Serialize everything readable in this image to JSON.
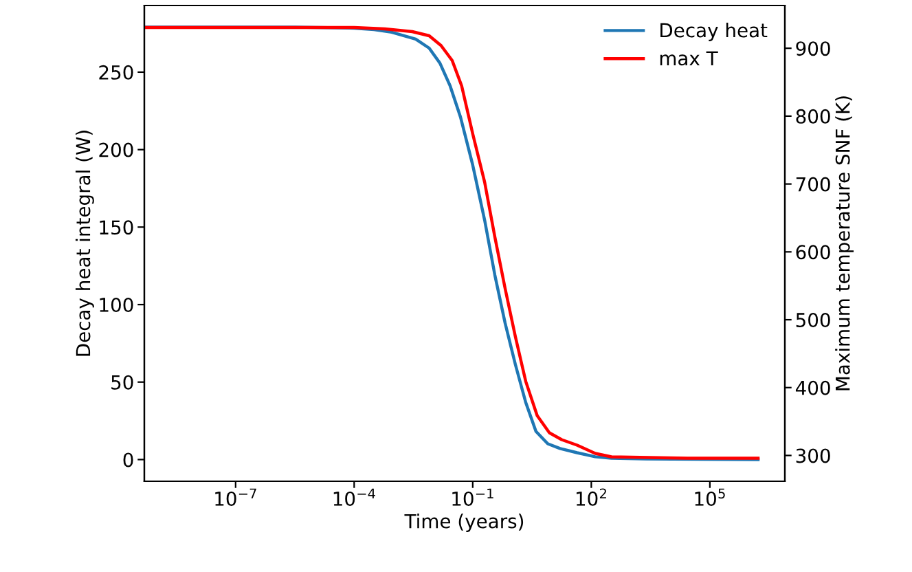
{
  "chart_data": {
    "type": "line",
    "xlabel": "Time (years)",
    "ylabel": "Decay heat integral (W)",
    "y2label": "Maximum temperature SNF (K)",
    "log": "x",
    "legend": "top right",
    "grid": false,
    "marker": "none",
    "line_style": "solid",
    "xlim": [
      4.9e-10,
      7900000.0
    ],
    "xticks": [
      {
        "value": 1e-07,
        "label": "10$^{−7}$"
      },
      {
        "value": 0.0001,
        "label": "10$^{−4}$"
      },
      {
        "value": 0.1,
        "label": "10$^{−1}$"
      },
      {
        "value": 100,
        "label": "10$^{2}$"
      },
      {
        "value": 100000,
        "label": "10$^{5}$"
      }
    ],
    "ylim": [
      -14,
      293
    ],
    "yticks": [
      0,
      50,
      100,
      150,
      200,
      250
    ],
    "y2lim": [
      262,
      963
    ],
    "y2ticks": [
      300,
      400,
      500,
      600,
      700,
      800,
      900
    ],
    "series": [
      {
        "name": "Decay heat",
        "color": "#1f77b4",
        "x": [
          4.9e-10,
          3.2e-06,
          0.0001,
          0.00032,
          0.00089,
          0.0036,
          0.0079,
          0.0148,
          0.0269,
          0.049,
          0.1,
          0.2,
          0.363,
          0.66,
          1.2,
          2.19,
          3.98,
          7.94,
          16.2,
          43.7,
          126,
          324,
          2400,
          1660000.0
        ],
        "values": [
          279,
          279,
          278.4,
          277.5,
          275.8,
          271.3,
          265.5,
          255.8,
          241,
          221,
          190,
          154.5,
          119,
          88,
          61.3,
          36.9,
          18.2,
          10.2,
          7.1,
          4.4,
          1.8,
          0.9,
          0.4,
          0
        ]
      },
      {
        "name": "max T",
        "color": "#ff0000",
        "axis": "y2",
        "x": [
          4.9e-10,
          0.0001,
          0.00059,
          0.00295,
          0.0079,
          0.0158,
          0.0302,
          0.0525,
          0.1,
          0.2,
          0.363,
          0.66,
          1.2,
          2.19,
          4.27,
          8.7,
          17.8,
          43.7,
          126,
          324,
          26900,
          1660000.0
        ],
        "values": [
          930.6,
          930.6,
          928.5,
          924.5,
          918.4,
          904,
          882,
          844.5,
          773.7,
          702.8,
          621.9,
          546,
          475,
          409.3,
          358.7,
          333.4,
          323.3,
          315.2,
          303,
          298,
          296,
          296
        ]
      }
    ]
  }
}
